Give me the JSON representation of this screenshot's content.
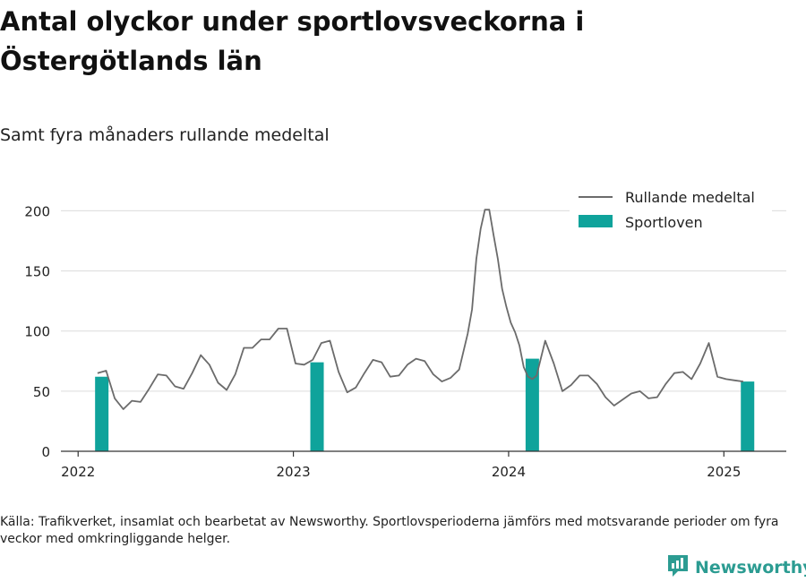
{
  "title": "Antal olyckor under sportlovsveckorna i Östergötlands län",
  "subtitle": "Samt fyra månaders rullande medeltal",
  "source": "Källa: Trafikverket, insamlat och bearbetat av Newsworthy. Sportlovsperioderna jämförs med motsvarande perioder om fyra veckor med omkringliggande helger.",
  "brand": "Newsworthy",
  "colors": {
    "line": "#6b6b6b",
    "bar": "#0fa39b",
    "grid": "#dcdcdc",
    "logo": "#2c9c92"
  },
  "chart_data": {
    "type": "bar+line",
    "legend": {
      "placement": "top-right",
      "line_label": "Rullande medeltal",
      "bar_label": "Sportloven"
    },
    "ylim": [
      0,
      210
    ],
    "yticks": [
      0,
      50,
      100,
      150,
      200
    ],
    "xlim": [
      2021.92,
      2025.29
    ],
    "xticks": [
      2022,
      2023,
      2024,
      2025
    ],
    "xtick_labels": [
      "2022",
      "2023",
      "2024",
      "2025"
    ],
    "bars": [
      {
        "x": 2022.11,
        "value": 62
      },
      {
        "x": 2023.11,
        "value": 74
      },
      {
        "x": 2024.11,
        "value": 77
      },
      {
        "x": 2025.11,
        "value": 58
      }
    ],
    "line": {
      "x": [
        2022.09,
        2022.13,
        2022.17,
        2022.21,
        2022.25,
        2022.29,
        2022.33,
        2022.37,
        2022.41,
        2022.45,
        2022.49,
        2022.53,
        2022.57,
        2022.61,
        2022.65,
        2022.69,
        2022.73,
        2022.77,
        2022.81,
        2022.85,
        2022.89,
        2022.93,
        2022.97,
        2023.01,
        2023.05,
        2023.09,
        2023.13,
        2023.17,
        2023.21,
        2023.25,
        2023.29,
        2023.33,
        2023.37,
        2023.41,
        2023.45,
        2023.49,
        2023.53,
        2023.57,
        2023.61,
        2023.65,
        2023.69,
        2023.73,
        2023.77,
        2023.81,
        2023.83,
        2023.85,
        2023.87,
        2023.89,
        2023.91,
        2023.93,
        2023.95,
        2023.97,
        2023.99,
        2024.01,
        2024.03,
        2024.05,
        2024.07,
        2024.09,
        2024.11,
        2024.13,
        2024.17,
        2024.21,
        2024.25,
        2024.29,
        2024.33,
        2024.37,
        2024.41,
        2024.45,
        2024.49,
        2024.53,
        2024.57,
        2024.61,
        2024.65,
        2024.69,
        2024.73,
        2024.77,
        2024.81,
        2024.85,
        2024.89,
        2024.93,
        2024.97,
        2025.01,
        2025.05,
        2025.09
      ],
      "y": [
        65,
        67,
        44,
        35,
        42,
        41,
        52,
        64,
        63,
        54,
        52,
        65,
        80,
        72,
        57,
        51,
        64,
        86,
        86,
        93,
        93,
        102,
        102,
        73,
        72,
        76,
        90,
        92,
        66,
        49,
        53,
        65,
        76,
        74,
        62,
        63,
        72,
        77,
        75,
        64,
        58,
        61,
        68,
        98,
        118,
        160,
        185,
        201,
        201,
        180,
        160,
        135,
        120,
        107,
        99,
        88,
        70,
        62,
        60,
        63,
        92,
        73,
        50,
        55,
        63,
        63,
        56,
        45,
        38,
        43,
        48,
        50,
        44,
        45,
        56,
        65,
        66,
        60,
        73,
        90,
        62,
        60,
        59,
        58
      ]
    }
  }
}
